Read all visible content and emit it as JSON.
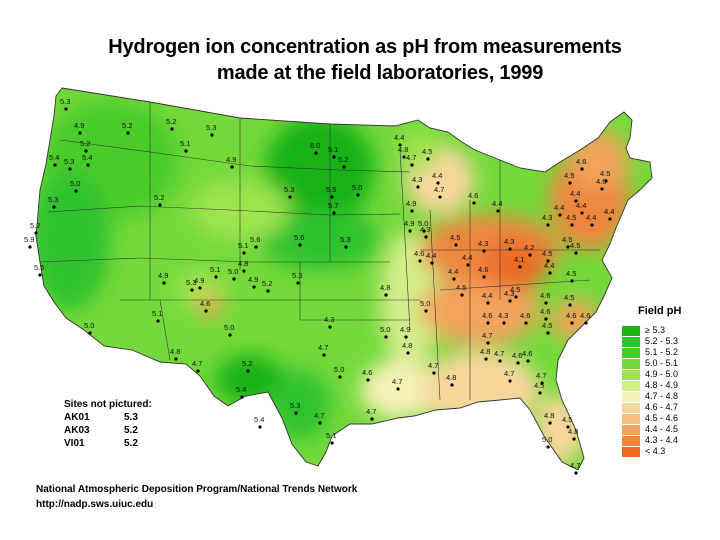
{
  "title_line1": "Hydrogen ion concentration as pH from measurements",
  "title_line2": "made at the field laboratories, 1999",
  "legend": {
    "title": "Field pH",
    "items": [
      {
        "label": "≥ 5.3",
        "color": "#19b219"
      },
      {
        "label": "5.2 - 5.3",
        "color": "#2ec22e"
      },
      {
        "label": "5.1 - 5.2",
        "color": "#48cc2a"
      },
      {
        "label": "5.0 - 5.1",
        "color": "#74d93a"
      },
      {
        "label": "4.9 - 5.0",
        "color": "#9fe450"
      },
      {
        "label": "4.8 - 4.9",
        "color": "#d4ee8c"
      },
      {
        "label": "4.7 - 4.8",
        "color": "#f6f2b6"
      },
      {
        "label": "4.6 - 4.7",
        "color": "#f8d79c"
      },
      {
        "label": "4.5 - 4.6",
        "color": "#f4bf7a"
      },
      {
        "label": "4.4 - 4.5",
        "color": "#f2a35c"
      },
      {
        "label": "4.3 - 4.4",
        "color": "#ee8640"
      },
      {
        "label": "< 4.3",
        "color": "#ea6a26"
      }
    ]
  },
  "sites_not_pictured": {
    "heading": "Sites not pictured:",
    "rows": [
      {
        "code": "AK01",
        "value": "5.3"
      },
      {
        "code": "AK03",
        "value": "5.2"
      },
      {
        "code": "VI01",
        "value": "5.2"
      }
    ]
  },
  "footer_line1": "National Atmospheric Deposition Program/National Trends Network",
  "footer_line2": "http://nadp.sws.uiuc.edu",
  "site_values": [
    {
      "v": "5.3"
    },
    {
      "v": "4.9"
    },
    {
      "v": "5.2"
    },
    {
      "v": "5.2"
    },
    {
      "v": "5.3"
    },
    {
      "v": "5.2"
    },
    {
      "v": "5.4"
    },
    {
      "v": "5.3"
    },
    {
      "v": "5.4"
    },
    {
      "v": "5.1"
    },
    {
      "v": "4.9"
    },
    {
      "v": "5.0"
    },
    {
      "v": "5.3"
    },
    {
      "v": "5.2"
    },
    {
      "v": "5.9"
    },
    {
      "v": "5.5"
    },
    {
      "v": "5.2"
    },
    {
      "v": "5.1"
    },
    {
      "v": "6.0"
    },
    {
      "v": "5.2"
    },
    {
      "v": "5.0"
    },
    {
      "v": "5.3"
    },
    {
      "v": "5.5"
    },
    {
      "v": "5.7"
    },
    {
      "v": "5.1"
    },
    {
      "v": "5.6"
    },
    {
      "v": "5.6"
    },
    {
      "v": "5.3"
    },
    {
      "v": "4.9"
    },
    {
      "v": "5.1"
    },
    {
      "v": "5.3"
    },
    {
      "v": "4.9"
    },
    {
      "v": "4.9"
    },
    {
      "v": "5.0"
    },
    {
      "v": "4.8"
    },
    {
      "v": "5.3"
    },
    {
      "v": "5.2"
    },
    {
      "v": "4.6"
    },
    {
      "v": "5.1"
    },
    {
      "v": "5.0"
    },
    {
      "v": "5.0"
    },
    {
      "v": "4.3"
    },
    {
      "v": "4.8"
    },
    {
      "v": "4.7"
    },
    {
      "v": "5.2"
    },
    {
      "v": "5.4"
    },
    {
      "v": "5.3"
    },
    {
      "v": "5.4"
    },
    {
      "v": "5.0"
    },
    {
      "v": "4.9"
    },
    {
      "v": "4.8"
    },
    {
      "v": "4.7"
    },
    {
      "v": "5.0"
    },
    {
      "v": "5.0"
    },
    {
      "v": "4.6"
    },
    {
      "v": "4.9"
    },
    {
      "v": "4.7"
    },
    {
      "v": "4.7"
    },
    {
      "v": "4.8"
    },
    {
      "v": "4.7"
    },
    {
      "v": "4.7"
    },
    {
      "v": "5.1"
    },
    {
      "v": "5.0"
    },
    {
      "v": "4.9"
    },
    {
      "v": "4.3"
    },
    {
      "v": "4.8"
    },
    {
      "v": "4.7"
    },
    {
      "v": "4.4"
    },
    {
      "v": "4.4"
    },
    {
      "v": "4.6"
    },
    {
      "v": "4.4"
    },
    {
      "v": "4.5"
    },
    {
      "v": "4.4"
    },
    {
      "v": "4.3"
    },
    {
      "v": "4.1"
    },
    {
      "v": "4.3"
    },
    {
      "v": "4.2"
    },
    {
      "v": "4.5"
    },
    {
      "v": "4.4"
    },
    {
      "v": "4.5"
    },
    {
      "v": "4.5"
    },
    {
      "v": "4.5"
    },
    {
      "v": "4.5"
    },
    {
      "v": "4.6"
    },
    {
      "v": "4.5"
    },
    {
      "v": "4.6"
    },
    {
      "v": "4.3"
    },
    {
      "v": "4.6"
    },
    {
      "v": "4.6"
    },
    {
      "v": "4.5"
    },
    {
      "v": "4.6"
    },
    {
      "v": "4.6"
    },
    {
      "v": "4.7"
    },
    {
      "v": "4.7"
    },
    {
      "v": "4.8"
    },
    {
      "v": "4.6"
    },
    {
      "v": "4.5"
    },
    {
      "v": "4.6"
    },
    {
      "v": "4.7"
    },
    {
      "v": "4.5"
    },
    {
      "v": "4.8"
    },
    {
      "v": "5.0"
    },
    {
      "v": "4.7"
    },
    {
      "v": "4.8"
    },
    {
      "v": "4.6"
    },
    {
      "v": "4.6"
    },
    {
      "v": "4.4"
    },
    {
      "v": "4.4"
    },
    {
      "v": "4.4"
    },
    {
      "v": "4.4"
    },
    {
      "v": "4.3"
    },
    {
      "v": "4.4"
    },
    {
      "v": "4.4"
    },
    {
      "v": "4.6"
    },
    {
      "v": "4.6"
    },
    {
      "v": "4.5"
    },
    {
      "v": "4.5"
    },
    {
      "v": "4.8"
    },
    {
      "v": "4.7"
    },
    {
      "v": "4.5"
    },
    {
      "v": "4.4"
    },
    {
      "v": "4.3"
    },
    {
      "v": "4.4"
    },
    {
      "v": "4.7"
    },
    {
      "v": "4.3"
    },
    {
      "v": "4.5"
    },
    {
      "v": "4.5"
    }
  ]
}
